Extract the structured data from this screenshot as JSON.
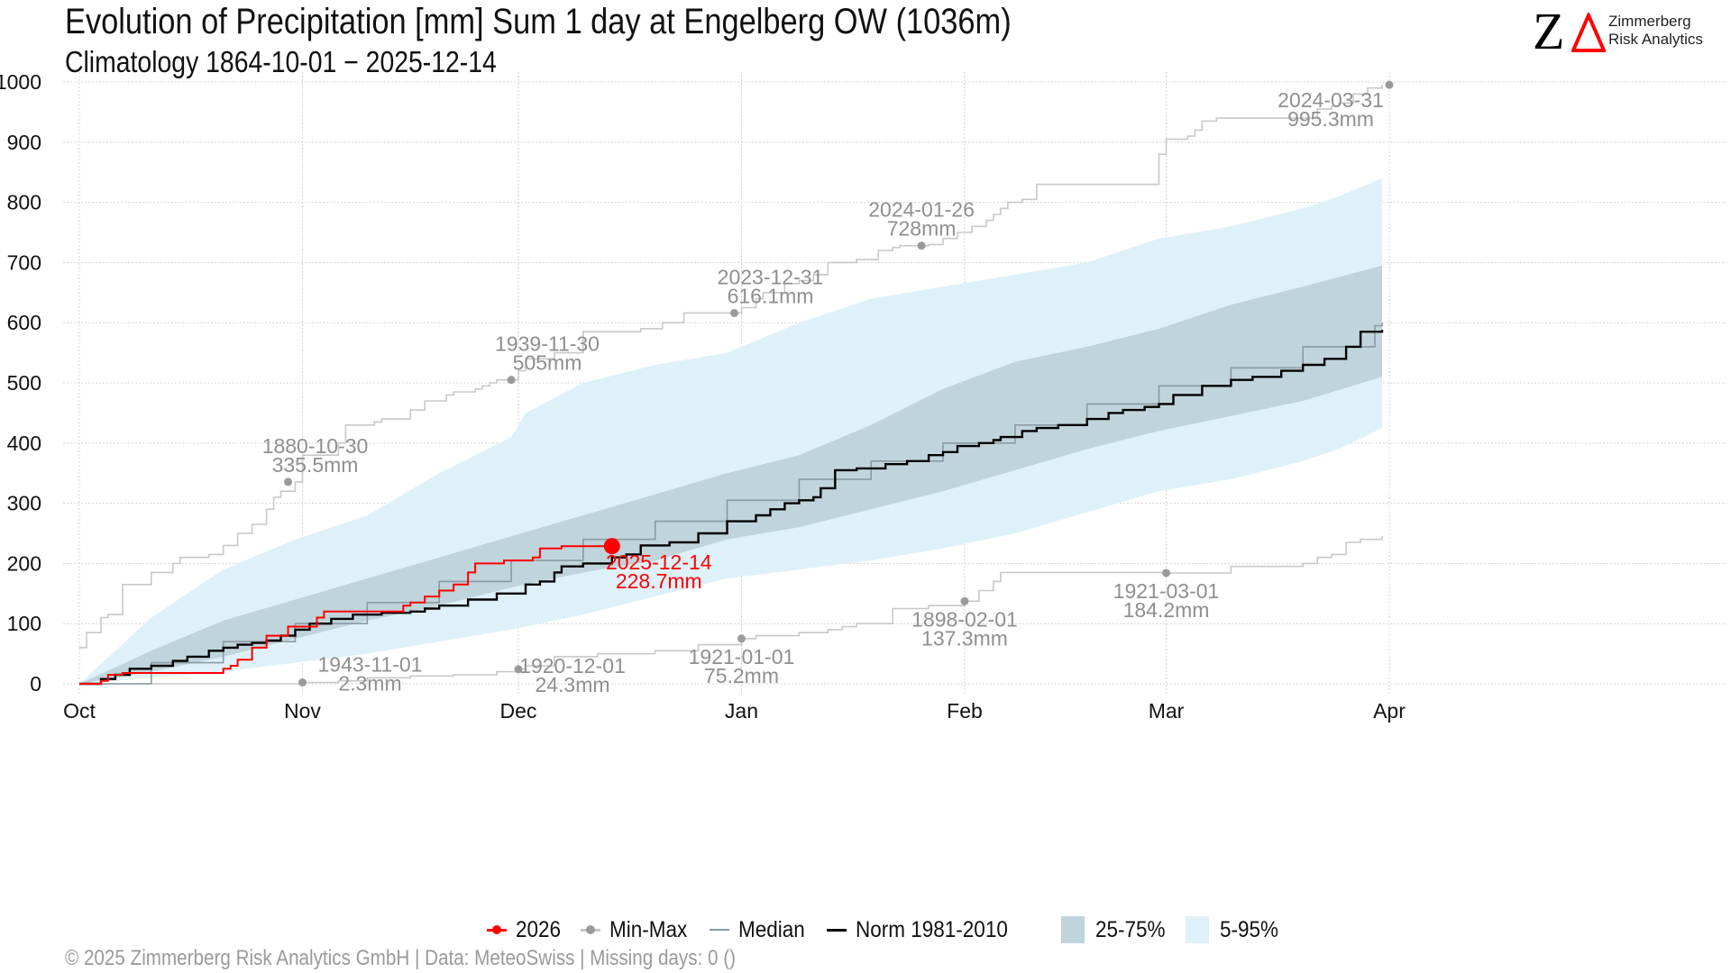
{
  "header": {
    "title": "Evolution of Precipitation [mm] Sum 1 day at Engelberg  OW (1036m)",
    "subtitle": "Climatology 1864-10-01 − 2025-12-14"
  },
  "logo": {
    "letter": "Z",
    "line1": "Zimmerberg",
    "line2": "Risk Analytics",
    "triangle_color": "#ff0000"
  },
  "footer": {
    "text": "©  2025 Zimmerberg Risk Analytics GmbH | Data: MeteoSwiss | Missing days: 0 ()"
  },
  "legend": {
    "items": [
      {
        "label": "2026",
        "kind": "line-dot",
        "color": "#ff0000"
      },
      {
        "label": "Min-Max",
        "kind": "line-dot",
        "color": "#9a9a9a"
      },
      {
        "label": "Median",
        "kind": "line",
        "color": "#8a9aa3"
      },
      {
        "label": "Norm 1981-2010",
        "kind": "line",
        "color": "#000000"
      },
      {
        "label": "25-75%",
        "kind": "box",
        "color": "#c0d4db"
      },
      {
        "label": "5-95%",
        "kind": "box",
        "color": "#def1f8"
      }
    ]
  },
  "chart_data": {
    "type": "line",
    "title": "Evolution of Precipitation [mm] Sum 1 day at Engelberg  OW (1036m)",
    "subtitle": "Climatology 1864-10-01 − 2025-12-14",
    "xlabel": "",
    "ylabel": "",
    "x_unit": "days since Oct 1",
    "xlim": [
      0,
      182
    ],
    "ylim": [
      0,
      1000
    ],
    "y_ticks": [
      0,
      100,
      200,
      300,
      400,
      500,
      600,
      700,
      800,
      900,
      1000
    ],
    "x_ticks": [
      {
        "day": 0,
        "label": "Oct"
      },
      {
        "day": 31,
        "label": "Nov"
      },
      {
        "day": 61,
        "label": "Dec"
      },
      {
        "day": 92,
        "label": "Jan"
      },
      {
        "day": 123,
        "label": "Feb"
      },
      {
        "day": 151,
        "label": "Mar"
      },
      {
        "day": 182,
        "label": "Apr"
      }
    ],
    "grid": true,
    "legend_position": "bottom",
    "colors": {
      "current": "#ff0000",
      "minmax": "#c8c8c8",
      "minmax_point": "#9a9a9a",
      "median": "#8a9aa3",
      "norm": "#000000",
      "band_25_75": "#c0d4db",
      "band_5_95": "#def1f8"
    },
    "series": [
      {
        "name": "Max",
        "type": "step",
        "x": [
          0,
          1,
          3,
          4,
          6,
          10,
          13,
          14,
          18,
          20,
          22,
          24,
          26,
          27,
          28,
          30,
          31,
          36,
          37,
          41,
          42,
          46,
          48,
          51,
          52,
          55,
          56,
          57,
          58,
          59,
          61,
          62,
          66,
          70,
          78,
          81,
          84,
          88,
          92,
          94,
          95,
          98,
          100,
          102,
          104,
          108,
          111,
          113,
          114,
          117,
          118,
          120,
          122,
          124,
          126,
          127,
          128,
          129,
          131,
          133,
          138,
          140,
          143,
          147,
          150,
          151,
          154,
          155,
          156,
          158,
          161,
          171,
          172,
          174,
          175,
          177,
          179,
          181
        ],
        "y": [
          60,
          85,
          110,
          115,
          165,
          185,
          200,
          210,
          215,
          230,
          250,
          265,
          290,
          310,
          320,
          335.5,
          380,
          400,
          430,
          435,
          440,
          455,
          470,
          480,
          485,
          490,
          495,
          500,
          505,
          505,
          520,
          540,
          550,
          585,
          590,
          600,
          616.1,
          616.1,
          625,
          640,
          650,
          665,
          670,
          680,
          700,
          705,
          720,
          725,
          728,
          728,
          730,
          740,
          750,
          760,
          770,
          780,
          790,
          800,
          805,
          830,
          830,
          830,
          830,
          830,
          880,
          905,
          910,
          920,
          935,
          940,
          940,
          940,
          955,
          960,
          965,
          980,
          990,
          995.3
        ]
      },
      {
        "name": "Min",
        "type": "step",
        "x": [
          0,
          20,
          31,
          36,
          40,
          46,
          52,
          58,
          61,
          62,
          66,
          72,
          80,
          86,
          92,
          94,
          100,
          104,
          106,
          108,
          113,
          118,
          123,
          125,
          127,
          128,
          132,
          135,
          140,
          151,
          160,
          170,
          172,
          174,
          176,
          178,
          181
        ],
        "y": [
          0,
          0,
          2.3,
          5,
          10,
          13,
          15,
          20,
          24.3,
          30,
          45,
          50,
          55,
          65,
          75.2,
          80,
          85,
          90,
          95,
          100,
          125,
          130,
          137.3,
          155,
          170,
          185,
          185,
          185,
          185,
          184.2,
          195,
          200,
          210,
          215,
          235,
          240,
          245
        ]
      },
      {
        "name": "Median",
        "type": "step",
        "x": [
          0,
          10,
          20,
          30,
          40,
          50,
          60,
          70,
          80,
          90,
          100,
          110,
          120,
          130,
          140,
          150,
          160,
          170,
          180,
          181
        ],
        "y": [
          0,
          35,
          70,
          100,
          135,
          170,
          205,
          240,
          270,
          305,
          340,
          370,
          400,
          430,
          465,
          495,
          525,
          560,
          595,
          600
        ]
      },
      {
        "name": "Norm 1981-2010",
        "type": "step",
        "x": [
          0,
          3,
          5,
          7,
          10,
          13,
          15,
          18,
          20,
          22,
          24,
          26,
          28,
          30,
          32,
          35,
          38,
          42,
          46,
          48,
          50,
          54,
          58,
          62,
          64,
          66,
          67,
          70,
          74,
          76,
          78,
          82,
          86,
          90,
          94,
          96,
          98,
          100,
          102,
          103,
          105,
          108,
          112,
          115,
          118,
          120,
          122,
          125,
          127,
          128,
          131,
          133,
          136,
          140,
          143,
          145,
          148,
          150,
          152,
          156,
          160,
          163,
          167,
          170,
          173,
          176,
          178,
          181
        ],
        "y": [
          0,
          8,
          15,
          25,
          30,
          38,
          45,
          55,
          60,
          65,
          68,
          72,
          80,
          90,
          100,
          108,
          115,
          118,
          120,
          125,
          130,
          140,
          150,
          165,
          170,
          185,
          195,
          200,
          210,
          215,
          230,
          235,
          250,
          270,
          280,
          290,
          300,
          305,
          310,
          325,
          355,
          358,
          365,
          370,
          380,
          385,
          395,
          400,
          405,
          410,
          420,
          425,
          430,
          440,
          450,
          455,
          460,
          465,
          480,
          495,
          505,
          510,
          520,
          530,
          540,
          560,
          585,
          588
        ]
      },
      {
        "name": "2026",
        "type": "step",
        "x": [
          0,
          3,
          4,
          6,
          14,
          20,
          21,
          22,
          24,
          26,
          29,
          33,
          34,
          44,
          45,
          46,
          48,
          50,
          52,
          54,
          55,
          59,
          61,
          63,
          64,
          67,
          68,
          73,
          74
        ],
        "y": [
          0,
          5,
          15,
          18,
          18,
          25,
          30,
          40,
          60,
          80,
          95,
          110,
          120,
          120,
          130,
          135,
          145,
          155,
          165,
          185,
          200,
          205,
          205,
          210,
          225,
          228.7,
          228.7,
          228.7,
          228.7
        ]
      },
      {
        "name": "5-95%",
        "type": "band",
        "x": [
          0,
          10,
          20,
          30,
          40,
          50,
          60,
          62,
          70,
          80,
          90,
          100,
          110,
          120,
          130,
          140,
          150,
          160,
          170,
          175,
          181
        ],
        "low": [
          0,
          10,
          20,
          35,
          50,
          70,
          90,
          95,
          115,
          145,
          175,
          190,
          205,
          225,
          250,
          285,
          320,
          340,
          370,
          390,
          425
        ],
        "high": [
          0,
          110,
          190,
          240,
          280,
          350,
          410,
          450,
          500,
          530,
          550,
          600,
          640,
          660,
          680,
          700,
          740,
          760,
          790,
          810,
          840
        ]
      },
      {
        "name": "25-75%",
        "type": "band",
        "x": [
          0,
          10,
          20,
          30,
          40,
          50,
          60,
          70,
          80,
          90,
          100,
          110,
          120,
          130,
          140,
          150,
          160,
          170,
          181
        ],
        "low": [
          0,
          20,
          45,
          75,
          105,
          130,
          160,
          185,
          205,
          240,
          260,
          290,
          320,
          355,
          390,
          420,
          445,
          470,
          510
        ],
        "high": [
          0,
          55,
          105,
          140,
          175,
          210,
          245,
          280,
          315,
          350,
          380,
          430,
          490,
          535,
          560,
          590,
          630,
          660,
          695
        ]
      }
    ],
    "annotations": [
      {
        "series": "Max",
        "day": 29,
        "value": 335.5,
        "date": "1880-10-30",
        "text": "335.5mm"
      },
      {
        "series": "Max",
        "day": 60,
        "value": 505,
        "date": "1939-11-30",
        "text": "505mm"
      },
      {
        "series": "Max",
        "day": 91,
        "value": 616.1,
        "date": "2023-12-31",
        "text": "616.1mm"
      },
      {
        "series": "Max",
        "day": 117,
        "value": 728,
        "date": "2024-01-26",
        "text": "728mm"
      },
      {
        "series": "Max",
        "day": 182,
        "value": 995.3,
        "date": "2024-03-31",
        "text": "995.3mm"
      },
      {
        "series": "Min",
        "day": 31,
        "value": 2.3,
        "date": "1943-11-01",
        "text": "2.3mm"
      },
      {
        "series": "Min",
        "day": 61,
        "value": 24.3,
        "date": "1920-12-01",
        "text": "24.3mm"
      },
      {
        "series": "Min",
        "day": 92,
        "value": 75.2,
        "date": "1921-01-01",
        "text": "75.2mm"
      },
      {
        "series": "Min",
        "day": 123,
        "value": 137.3,
        "date": "1898-02-01",
        "text": "137.3mm"
      },
      {
        "series": "Min",
        "day": 151,
        "value": 184.2,
        "date": "1921-03-01",
        "text": "184.2mm"
      },
      {
        "series": "2026",
        "day": 74,
        "value": 228.7,
        "date": "2025-12-14",
        "text": "228.7mm"
      }
    ]
  }
}
